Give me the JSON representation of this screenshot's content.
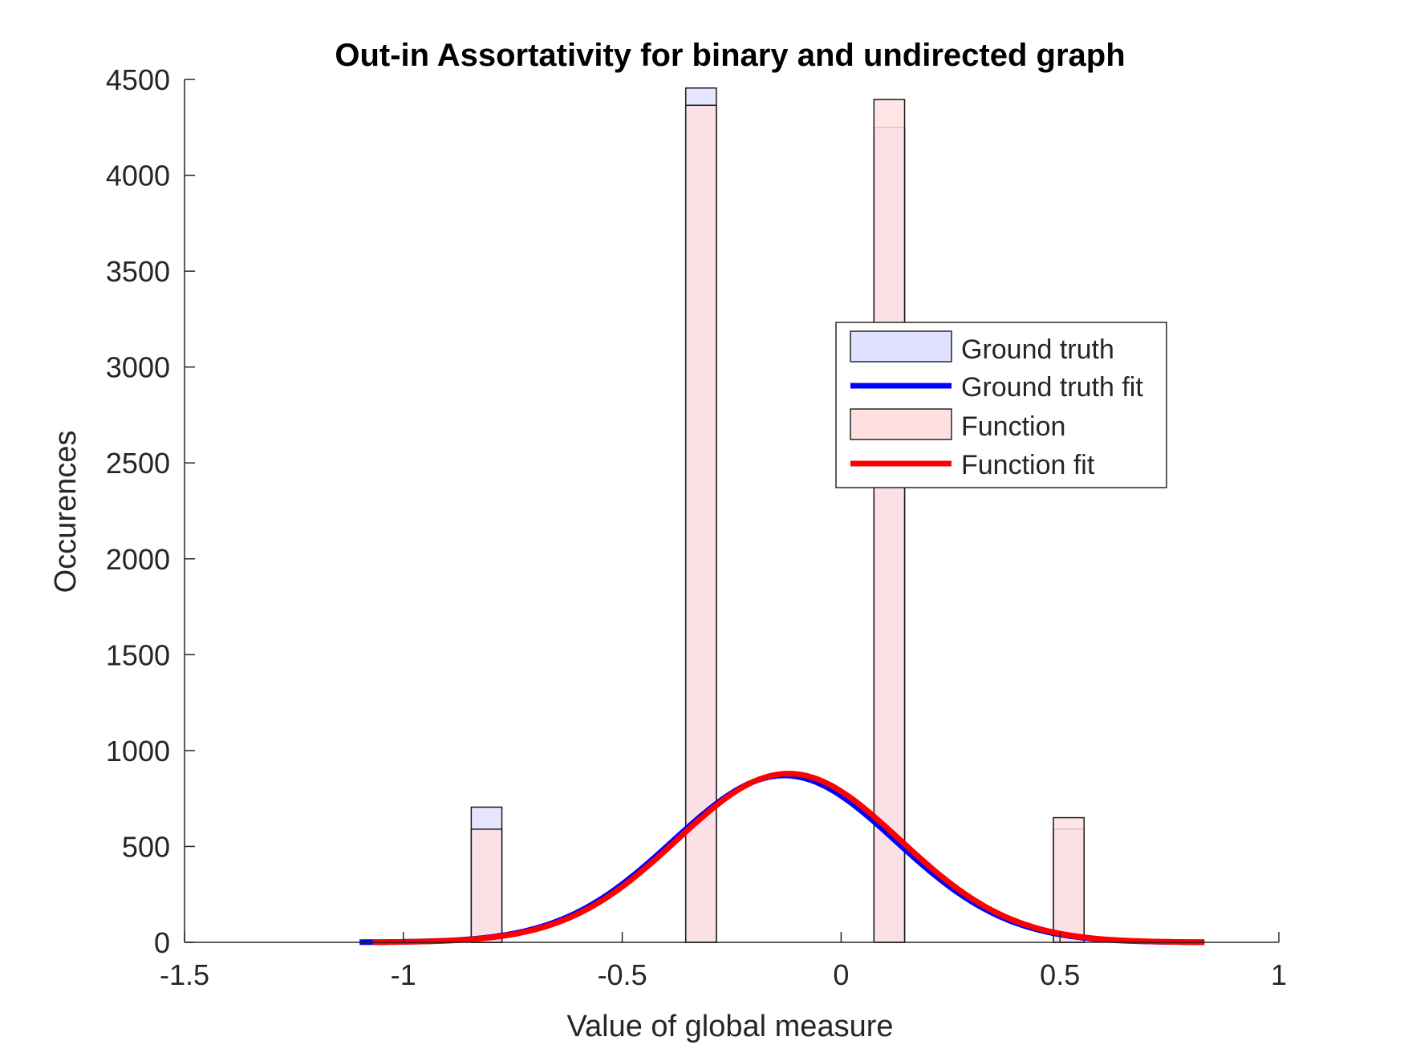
{
  "chart_data": {
    "type": "bar",
    "title": "Out-in Assortativity for binary and undirected graph",
    "xlabel": "Value of global measure",
    "ylabel": "Occurences",
    "xlim": [
      -1.5,
      1
    ],
    "ylim": [
      0,
      4500
    ],
    "xticks": [
      -1.5,
      -1,
      -0.5,
      0,
      0.5,
      1
    ],
    "xtick_labels": [
      "-1.5",
      "-1",
      "-0.5",
      "0",
      "0.5",
      "1"
    ],
    "yticks": [
      0,
      500,
      1000,
      1500,
      2000,
      2500,
      3000,
      3500,
      4000,
      4500
    ],
    "ytick_labels": [
      "0",
      "500",
      "1000",
      "1500",
      "2000",
      "2500",
      "3000",
      "3500",
      "4000",
      "4500"
    ],
    "grid": false,
    "legend_position": "right",
    "bin_width": 0.07,
    "series": [
      {
        "name": "Ground truth",
        "kind": "histogram",
        "color": "#e0e0ff",
        "bins": [
          {
            "center": -0.81,
            "value": 705
          },
          {
            "center": -0.32,
            "value": 4455
          },
          {
            "center": 0.11,
            "value": 4250
          },
          {
            "center": 0.52,
            "value": 590
          }
        ]
      },
      {
        "name": "Function",
        "kind": "histogram",
        "color": "#ffe0e0",
        "bins": [
          {
            "center": -0.81,
            "value": 590
          },
          {
            "center": -0.32,
            "value": 4365
          },
          {
            "center": 0.11,
            "value": 4395
          },
          {
            "center": 0.52,
            "value": 650
          }
        ]
      },
      {
        "name": "Ground truth fit",
        "kind": "normal-fit",
        "color": "#0000ff",
        "mean": -0.13,
        "sigma": 0.255,
        "peak": 870,
        "x_range": [
          -1.1,
          0.83
        ]
      },
      {
        "name": "Function fit",
        "kind": "normal-fit",
        "color": "#ff0000",
        "mean": -0.12,
        "sigma": 0.255,
        "peak": 880,
        "x_range": [
          -1.07,
          0.83
        ]
      }
    ]
  },
  "legend": {
    "items": [
      {
        "label": "Ground truth",
        "kind": "patch",
        "color": "#e0e0ff"
      },
      {
        "label": "Ground truth fit",
        "kind": "line",
        "color": "#0000ff"
      },
      {
        "label": "Function",
        "kind": "patch",
        "color": "#ffe0e0"
      },
      {
        "label": "Function fit",
        "kind": "line",
        "color": "#ff0000"
      }
    ]
  }
}
